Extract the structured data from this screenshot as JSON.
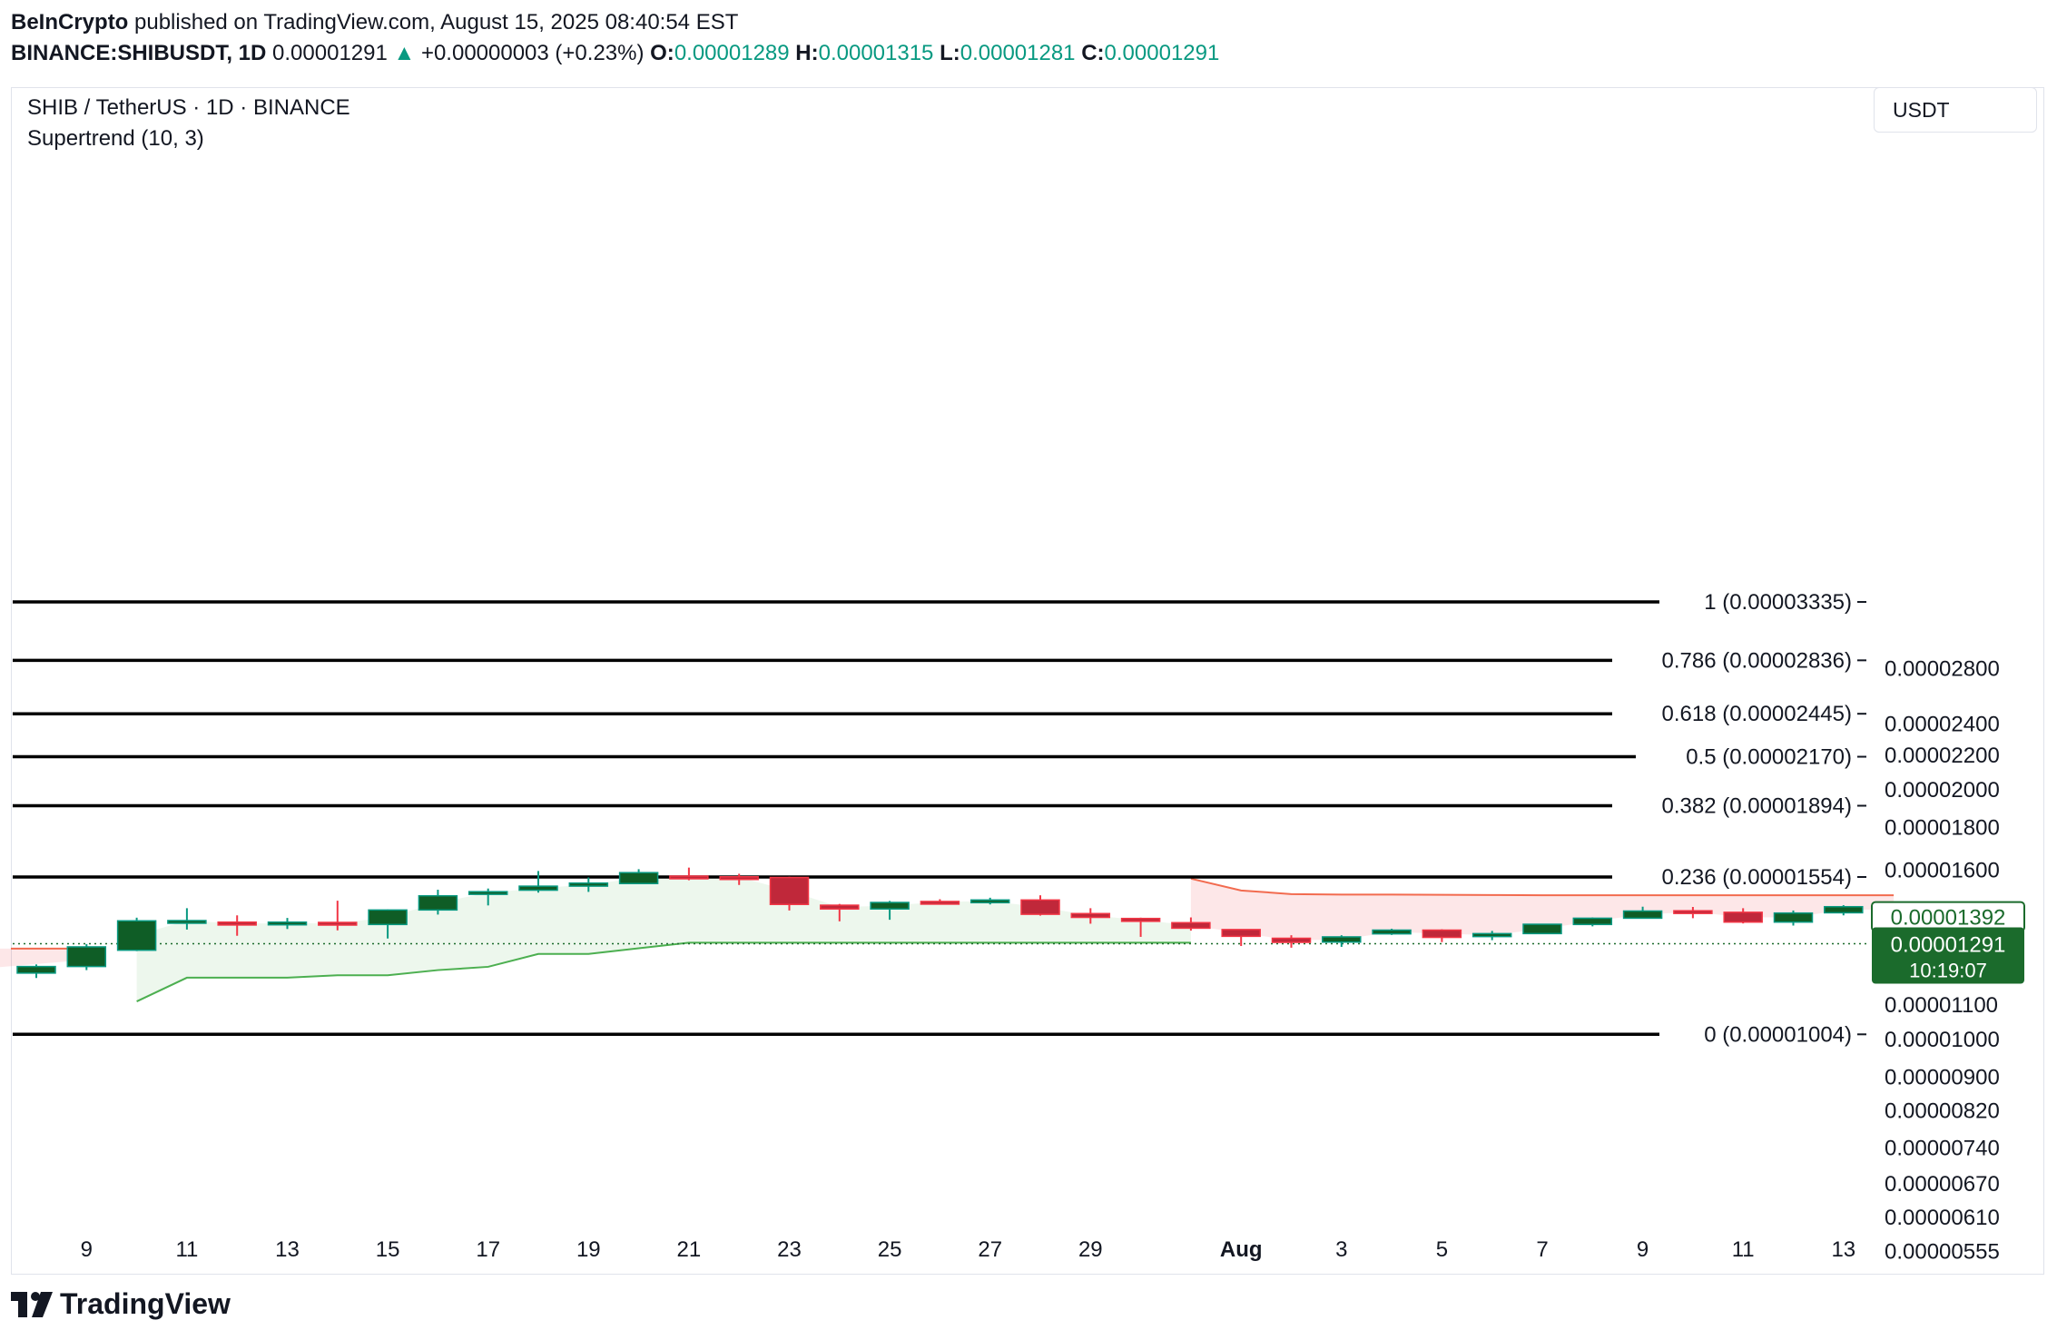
{
  "header": {
    "publisher": "BeInCrypto",
    "published_text": "published on TradingView.com, August 15, 2025 08:40:54 EST",
    "symbol": "BINANCE:SHIBUSDT, 1D",
    "last_price": "0.00001291",
    "change_arrow": "▲",
    "change": "+0.00000003 (+0.23%)",
    "o_label": "O:",
    "o_value": "0.00001289",
    "h_label": "H:",
    "h_value": "0.00001315",
    "l_label": "L:",
    "l_value": "0.00001281",
    "c_label": "C:",
    "c_value": "0.00001291"
  },
  "legend": {
    "pair": "SHIB / TetherUS · 1D · BINANCE",
    "indicator": "Supertrend (10, 3)"
  },
  "price_axis": {
    "unit": "USDT"
  },
  "branding": {
    "name": "TradingView"
  },
  "colors": {
    "bull_fill": "#0f5d26",
    "bull_border": "#089981",
    "bear_fill": "#c0283a",
    "bear_border": "#f23645",
    "support_line": "#4caf50",
    "support_fill": "rgba(76,175,80,0.10)",
    "resist_line": "#f26b4f",
    "resist_fill": "rgba(242,54,69,0.12)",
    "fib_line": "#000000",
    "current_price_bg": "#1b6b2c",
    "other_price_border": "#1b6b2c"
  },
  "chart_data": {
    "type": "candlestick",
    "title": "SHIB / TetherUS · 1D · BINANCE",
    "scale": "log",
    "ylim": [
      5.25e-06,
      3.45e-05
    ],
    "y_ticks": [
      2.8e-05,
      2.4e-05,
      2.2e-05,
      2e-05,
      1.8e-05,
      1.6e-05,
      1.1e-05,
      1e-05,
      9e-06,
      8.2e-06,
      7.4e-06,
      6.7e-06,
      6.1e-06,
      5.55e-06
    ],
    "y_tick_labels": [
      "0.00002800",
      "0.00002400",
      "0.00002200",
      "0.00002000",
      "0.00001800",
      "0.00001600",
      "0.00001100",
      "0.00001000",
      "0.00000900",
      "0.00000820",
      "0.00000740",
      "0.00000670",
      "0.00000610",
      "0.00000555"
    ],
    "x_ticks": [
      "9",
      "11",
      "13",
      "15",
      "17",
      "19",
      "21",
      "23",
      "25",
      "27",
      "29",
      "Aug",
      "3",
      "5",
      "7",
      "9",
      "11",
      "13"
    ],
    "x_tick_index": [
      1,
      3,
      5,
      7,
      9,
      11,
      13,
      15,
      17,
      19,
      21,
      24,
      26,
      28,
      30,
      32,
      34,
      36
    ],
    "candles": [
      {
        "date": "Jul 8",
        "o": 1.19e-05,
        "h": 1.219e-05,
        "l": 1.174e-05,
        "c": 1.212e-05
      },
      {
        "date": "Jul 9",
        "o": 1.212e-05,
        "h": 1.29e-05,
        "l": 1.2e-05,
        "c": 1.28e-05
      },
      {
        "date": "Jul 10",
        "o": 1.268e-05,
        "h": 1.388e-05,
        "l": 1.265e-05,
        "c": 1.376e-05
      },
      {
        "date": "Jul 11",
        "o": 1.376e-05,
        "h": 1.425e-05,
        "l": 1.343e-05,
        "c": 1.377e-05
      },
      {
        "date": "Jul 12",
        "o": 1.371e-05,
        "h": 1.397e-05,
        "l": 1.32e-05,
        "c": 1.36e-05
      },
      {
        "date": "Jul 13",
        "o": 1.362e-05,
        "h": 1.387e-05,
        "l": 1.345e-05,
        "c": 1.371e-05
      },
      {
        "date": "Jul 14",
        "o": 1.37e-05,
        "h": 1.455e-05,
        "l": 1.34e-05,
        "c": 1.362e-05
      },
      {
        "date": "Jul 15",
        "o": 1.362e-05,
        "h": 1.42e-05,
        "l": 1.31e-05,
        "c": 1.418e-05
      },
      {
        "date": "Jul 16",
        "o": 1.418e-05,
        "h": 1.5e-05,
        "l": 1.4e-05,
        "c": 1.475e-05
      },
      {
        "date": "Jul 17",
        "o": 1.483e-05,
        "h": 1.505e-05,
        "l": 1.436e-05,
        "c": 1.492e-05
      },
      {
        "date": "Jul 18",
        "o": 1.498e-05,
        "h": 1.58e-05,
        "l": 1.488e-05,
        "c": 1.515e-05
      },
      {
        "date": "Jul 19",
        "o": 1.515e-05,
        "h": 1.552e-05,
        "l": 1.491e-05,
        "c": 1.528e-05
      },
      {
        "date": "Jul 20",
        "o": 1.526e-05,
        "h": 1.588e-05,
        "l": 1.525e-05,
        "c": 1.573e-05
      },
      {
        "date": "Jul 21",
        "o": 1.558e-05,
        "h": 1.595e-05,
        "l": 1.54e-05,
        "c": 1.553e-05
      },
      {
        "date": "Jul 22",
        "o": 1.555e-05,
        "h": 1.568e-05,
        "l": 1.52e-05,
        "c": 1.552e-05
      },
      {
        "date": "Jul 23",
        "o": 1.552e-05,
        "h": 1.555e-05,
        "l": 1.416e-05,
        "c": 1.44e-05
      },
      {
        "date": "Jul 24",
        "o": 1.437e-05,
        "h": 1.442e-05,
        "l": 1.374e-05,
        "c": 1.422e-05
      },
      {
        "date": "Jul 25",
        "o": 1.422e-05,
        "h": 1.454e-05,
        "l": 1.38e-05,
        "c": 1.448e-05
      },
      {
        "date": "Jul 26",
        "o": 1.452e-05,
        "h": 1.461e-05,
        "l": 1.439e-05,
        "c": 1.449e-05
      },
      {
        "date": "Jul 27",
        "o": 1.448e-05,
        "h": 1.467e-05,
        "l": 1.44e-05,
        "c": 1.458e-05
      },
      {
        "date": "Jul 28",
        "o": 1.458e-05,
        "h": 1.477e-05,
        "l": 1.396e-05,
        "c": 1.401e-05
      },
      {
        "date": "Jul 29",
        "o": 1.404e-05,
        "h": 1.425e-05,
        "l": 1.365e-05,
        "c": 1.389e-05
      },
      {
        "date": "Jul 30",
        "o": 1.385e-05,
        "h": 1.388e-05,
        "l": 1.316e-05,
        "c": 1.374e-05
      },
      {
        "date": "Jul 31",
        "o": 1.369e-05,
        "h": 1.389e-05,
        "l": 1.339e-05,
        "c": 1.348e-05
      },
      {
        "date": "Aug 1",
        "o": 1.343e-05,
        "h": 1.343e-05,
        "l": 1.283e-05,
        "c": 1.318e-05
      },
      {
        "date": "Aug 2",
        "o": 1.311e-05,
        "h": 1.322e-05,
        "l": 1.277e-05,
        "c": 1.296e-05
      },
      {
        "date": "Aug 3",
        "o": 1.297e-05,
        "h": 1.322e-05,
        "l": 1.28e-05,
        "c": 1.316e-05
      },
      {
        "date": "Aug 4",
        "o": 1.327e-05,
        "h": 1.346e-05,
        "l": 1.323e-05,
        "c": 1.341e-05
      },
      {
        "date": "Aug 5",
        "o": 1.341e-05,
        "h": 1.344e-05,
        "l": 1.297e-05,
        "c": 1.314e-05
      },
      {
        "date": "Aug 6",
        "o": 1.317e-05,
        "h": 1.338e-05,
        "l": 1.304e-05,
        "c": 1.328e-05
      },
      {
        "date": "Aug 7",
        "o": 1.328e-05,
        "h": 1.364e-05,
        "l": 1.328e-05,
        "c": 1.363e-05
      },
      {
        "date": "Aug 8",
        "o": 1.362e-05,
        "h": 1.389e-05,
        "l": 1.355e-05,
        "c": 1.386e-05
      },
      {
        "date": "Aug 9",
        "o": 1.386e-05,
        "h": 1.431e-05,
        "l": 1.384e-05,
        "c": 1.414e-05
      },
      {
        "date": "Aug 10",
        "o": 1.415e-05,
        "h": 1.43e-05,
        "l": 1.386e-05,
        "c": 1.406e-05
      },
      {
        "date": "Aug 11",
        "o": 1.409e-05,
        "h": 1.425e-05,
        "l": 1.366e-05,
        "c": 1.371e-05
      },
      {
        "date": "Aug 12",
        "o": 1.371e-05,
        "h": 1.416e-05,
        "l": 1.358e-05,
        "c": 1.406e-05
      },
      {
        "date": "Aug 13",
        "o": 1.407e-05,
        "h": 1.437e-05,
        "l": 1.397e-05,
        "c": 1.431e-05
      }
    ],
    "supertrend": {
      "name": "Supertrend (10, 3)",
      "support": [
        {
          "i": 2,
          "v": 1.1e-05
        },
        {
          "i": 3,
          "v": 1.175e-05
        },
        {
          "i": 4,
          "v": 1.175e-05
        },
        {
          "i": 5,
          "v": 1.175e-05
        },
        {
          "i": 6,
          "v": 1.183e-05
        },
        {
          "i": 7,
          "v": 1.183e-05
        },
        {
          "i": 8,
          "v": 1.2e-05
        },
        {
          "i": 9,
          "v": 1.211e-05
        },
        {
          "i": 10,
          "v": 1.255e-05
        },
        {
          "i": 11,
          "v": 1.255e-05
        },
        {
          "i": 12,
          "v": 1.275e-05
        },
        {
          "i": 13,
          "v": 1.295e-05
        },
        {
          "i": 14,
          "v": 1.295e-05
        },
        {
          "i": 15,
          "v": 1.295e-05
        },
        {
          "i": 16,
          "v": 1.295e-05
        },
        {
          "i": 17,
          "v": 1.295e-05
        },
        {
          "i": 18,
          "v": 1.295e-05
        },
        {
          "i": 19,
          "v": 1.295e-05
        },
        {
          "i": 20,
          "v": 1.295e-05
        },
        {
          "i": 21,
          "v": 1.295e-05
        },
        {
          "i": 22,
          "v": 1.295e-05
        },
        {
          "i": 23,
          "v": 1.295e-05
        }
      ],
      "resistance_before": [
        {
          "i": 0,
          "v": 1.274e-05
        },
        {
          "i": 1,
          "v": 1.274e-05
        }
      ],
      "resistance": [
        {
          "i": 23,
          "v": 1.547e-05
        },
        {
          "i": 24,
          "v": 1.497e-05
        },
        {
          "i": 25,
          "v": 1.482e-05
        },
        {
          "i": 26,
          "v": 1.48e-05
        },
        {
          "i": 27,
          "v": 1.48e-05
        },
        {
          "i": 28,
          "v": 1.479e-05
        },
        {
          "i": 29,
          "v": 1.478e-05
        },
        {
          "i": 30,
          "v": 1.477e-05
        },
        {
          "i": 31,
          "v": 1.477e-05
        },
        {
          "i": 32,
          "v": 1.477e-05
        },
        {
          "i": 33,
          "v": 1.477e-05
        },
        {
          "i": 34,
          "v": 1.477e-05
        },
        {
          "i": 35,
          "v": 1.477e-05
        },
        {
          "i": 36,
          "v": 1.477e-05
        },
        {
          "i": 37,
          "v": 1.477e-05
        }
      ],
      "support_value": 1.392e-05,
      "support_value_label": "0.00001392"
    },
    "fibonacci": [
      {
        "ratio": "1",
        "value": 3.335e-05,
        "label": "1 (0.00003335)"
      },
      {
        "ratio": "0.786",
        "value": 2.836e-05,
        "label": "0.786 (0.00002836)"
      },
      {
        "ratio": "0.618",
        "value": 2.445e-05,
        "label": "0.618 (0.00002445)"
      },
      {
        "ratio": "0.5",
        "value": 2.17e-05,
        "label": "0.5 (0.00002170)"
      },
      {
        "ratio": "0.382",
        "value": 1.894e-05,
        "label": "0.382 (0.00001894)"
      },
      {
        "ratio": "0.236",
        "value": 1.554e-05,
        "label": "0.236 (0.00001554)"
      },
      {
        "ratio": "0",
        "value": 1.004e-05,
        "label": "0 (0.00001004)"
      }
    ],
    "current_price": {
      "value": 1.291e-05,
      "label": "0.00001291",
      "countdown": "10:19:07"
    }
  }
}
